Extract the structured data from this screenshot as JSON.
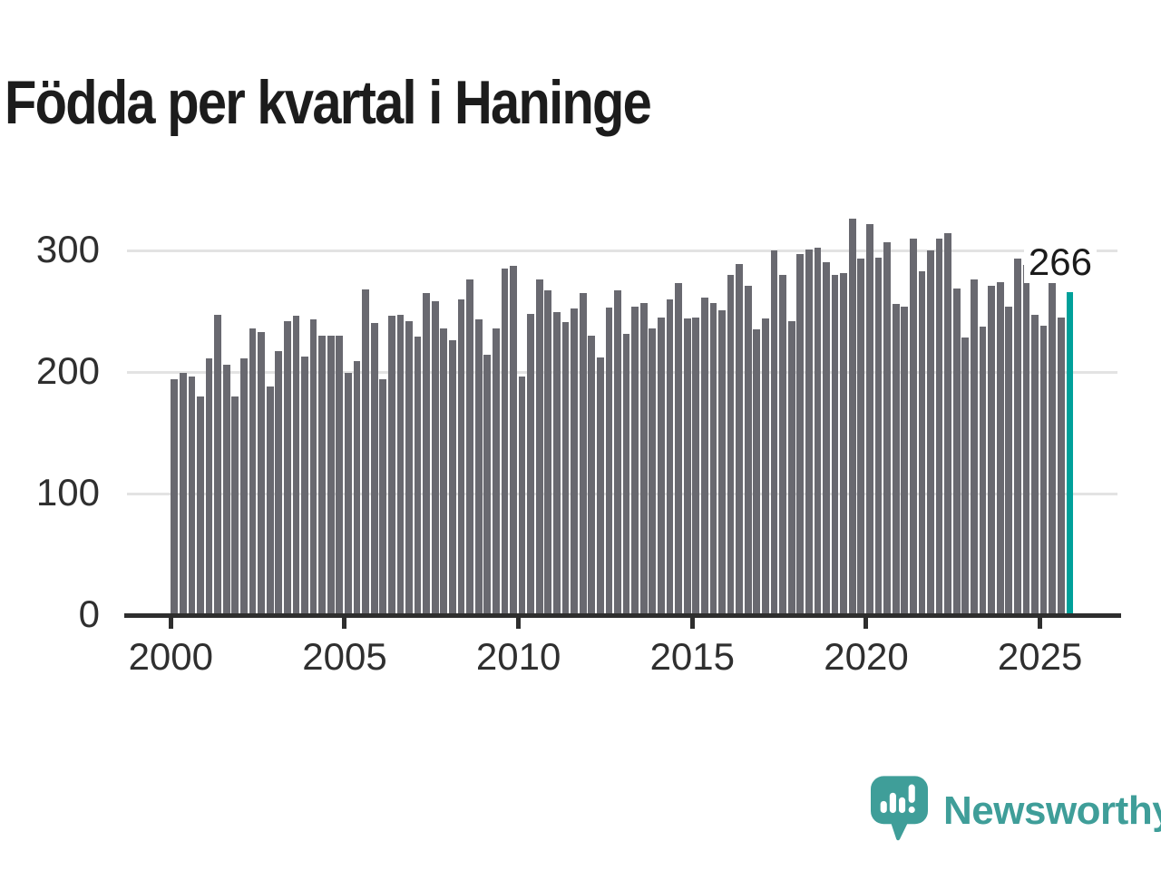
{
  "title": "Födda per kvartal i Haninge",
  "annotation": {
    "value_label": "266"
  },
  "branding": {
    "name": "Newsworthy"
  },
  "colors": {
    "bar": "#696970",
    "highlight": "#00a09a",
    "logo": "#3f9e99",
    "axis": "#2e2e2e",
    "gridline": "#e3e3e3",
    "tick_label": "#2f2f2f",
    "title_text": "#1c1c1c",
    "background": "#ffffff"
  },
  "chart_data": {
    "type": "bar",
    "title": "Födda per kvartal i Haninge",
    "frequency": "quarterly",
    "start": "2000 Q1",
    "end": "2025 Q4",
    "grid": "horizontal-only",
    "legend": "none",
    "ylim": [
      0,
      375
    ],
    "yticks": [
      0,
      100,
      200,
      300
    ],
    "xticks": [
      2000,
      2005,
      2010,
      2015,
      2020,
      2025
    ],
    "highlight_index": 103,
    "highlight_value": 266,
    "highlight_label": "266",
    "series": [
      {
        "name": "Födda",
        "values": [
          194,
          199,
          196,
          180,
          211,
          247,
          206,
          180,
          211,
          236,
          233,
          188,
          217,
          242,
          246,
          213,
          243,
          230,
          230,
          230,
          199,
          209,
          268,
          240,
          194,
          246,
          247,
          242,
          229,
          265,
          258,
          236,
          226,
          260,
          276,
          243,
          214,
          236,
          285,
          287,
          196,
          248,
          276,
          267,
          249,
          241,
          252,
          265,
          230,
          212,
          253,
          267,
          231,
          254,
          257,
          236,
          245,
          260,
          273,
          244,
          245,
          261,
          257,
          251,
          280,
          289,
          271,
          235,
          244,
          300,
          280,
          242,
          297,
          301,
          302,
          290,
          280,
          281,
          326,
          293,
          322,
          294,
          307,
          256,
          254,
          310,
          283,
          300,
          310,
          314,
          269,
          228,
          276,
          237,
          271,
          274,
          254,
          293,
          288,
          247,
          238,
          276,
          245,
          266
        ]
      }
    ]
  }
}
